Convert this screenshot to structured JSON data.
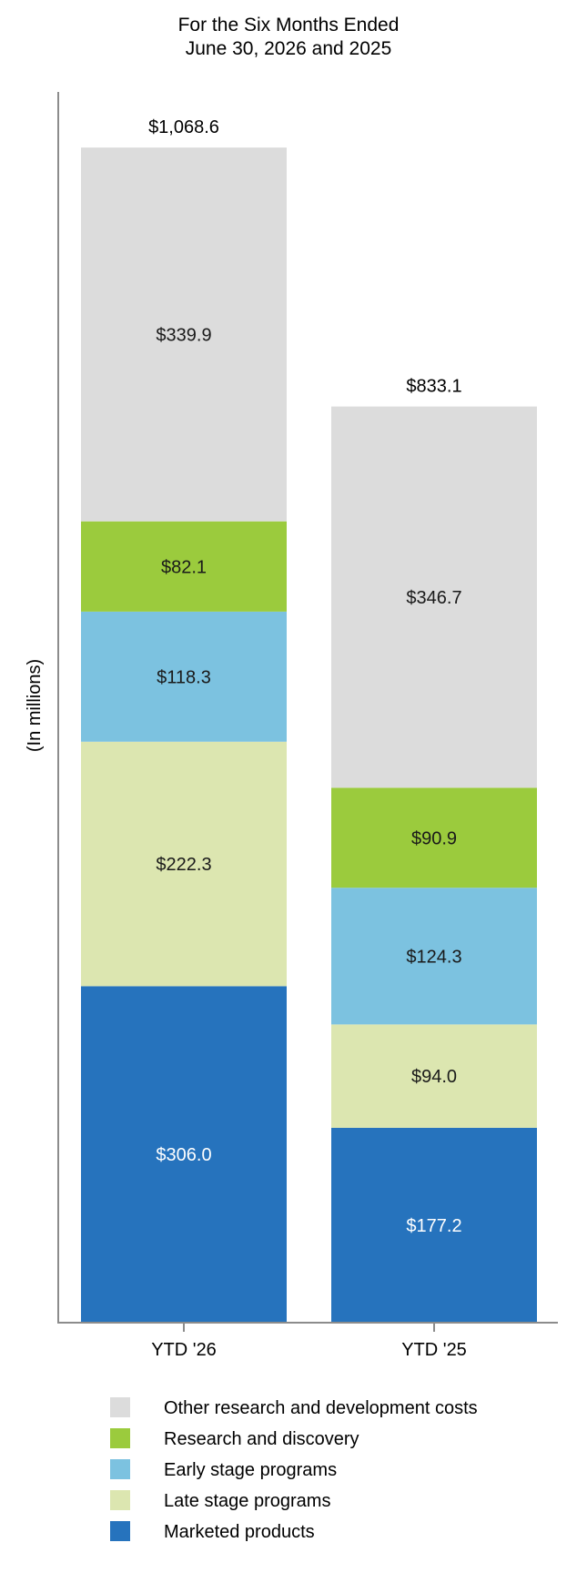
{
  "chart_data": {
    "type": "bar",
    "stacked": true,
    "title_lines": [
      "For the Six Months Ended",
      "June 30, 2026 and 2025"
    ],
    "ylabel": "(In millions)",
    "xlabel": "",
    "categories": [
      "YTD '26",
      "YTD '25"
    ],
    "totals": [
      1068.6,
      833.1
    ],
    "total_labels": [
      "$1,068.6",
      "$833.1"
    ],
    "ylim": [
      0,
      1120
    ],
    "grid": false,
    "legend_position": "bottom",
    "series": [
      {
        "name": "Marketed products",
        "color": "#2673bd",
        "text_color": "#ffffff",
        "values": [
          306.0,
          177.2
        ],
        "labels": [
          "$306.0",
          "$177.2"
        ]
      },
      {
        "name": "Late stage programs",
        "color": "#dce6b0",
        "text_color": "#1a1a1a",
        "values": [
          222.3,
          94.0
        ],
        "labels": [
          "$222.3",
          "$94.0"
        ]
      },
      {
        "name": "Early stage programs",
        "color": "#7cc2e0",
        "text_color": "#1a1a1a",
        "values": [
          118.3,
          124.3
        ],
        "labels": [
          "$118.3",
          "$124.3"
        ]
      },
      {
        "name": "Research and discovery",
        "color": "#9bcb3d",
        "text_color": "#1a1a1a",
        "values": [
          82.1,
          90.9
        ],
        "labels": [
          "$82.1",
          "$90.9"
        ]
      },
      {
        "name": "Other research and development costs",
        "color": "#dcdcdc",
        "text_color": "#1a1a1a",
        "values": [
          339.9,
          346.7
        ],
        "labels": [
          "$339.9",
          "$346.7"
        ]
      }
    ],
    "legend_order": [
      4,
      3,
      2,
      1,
      0
    ]
  }
}
